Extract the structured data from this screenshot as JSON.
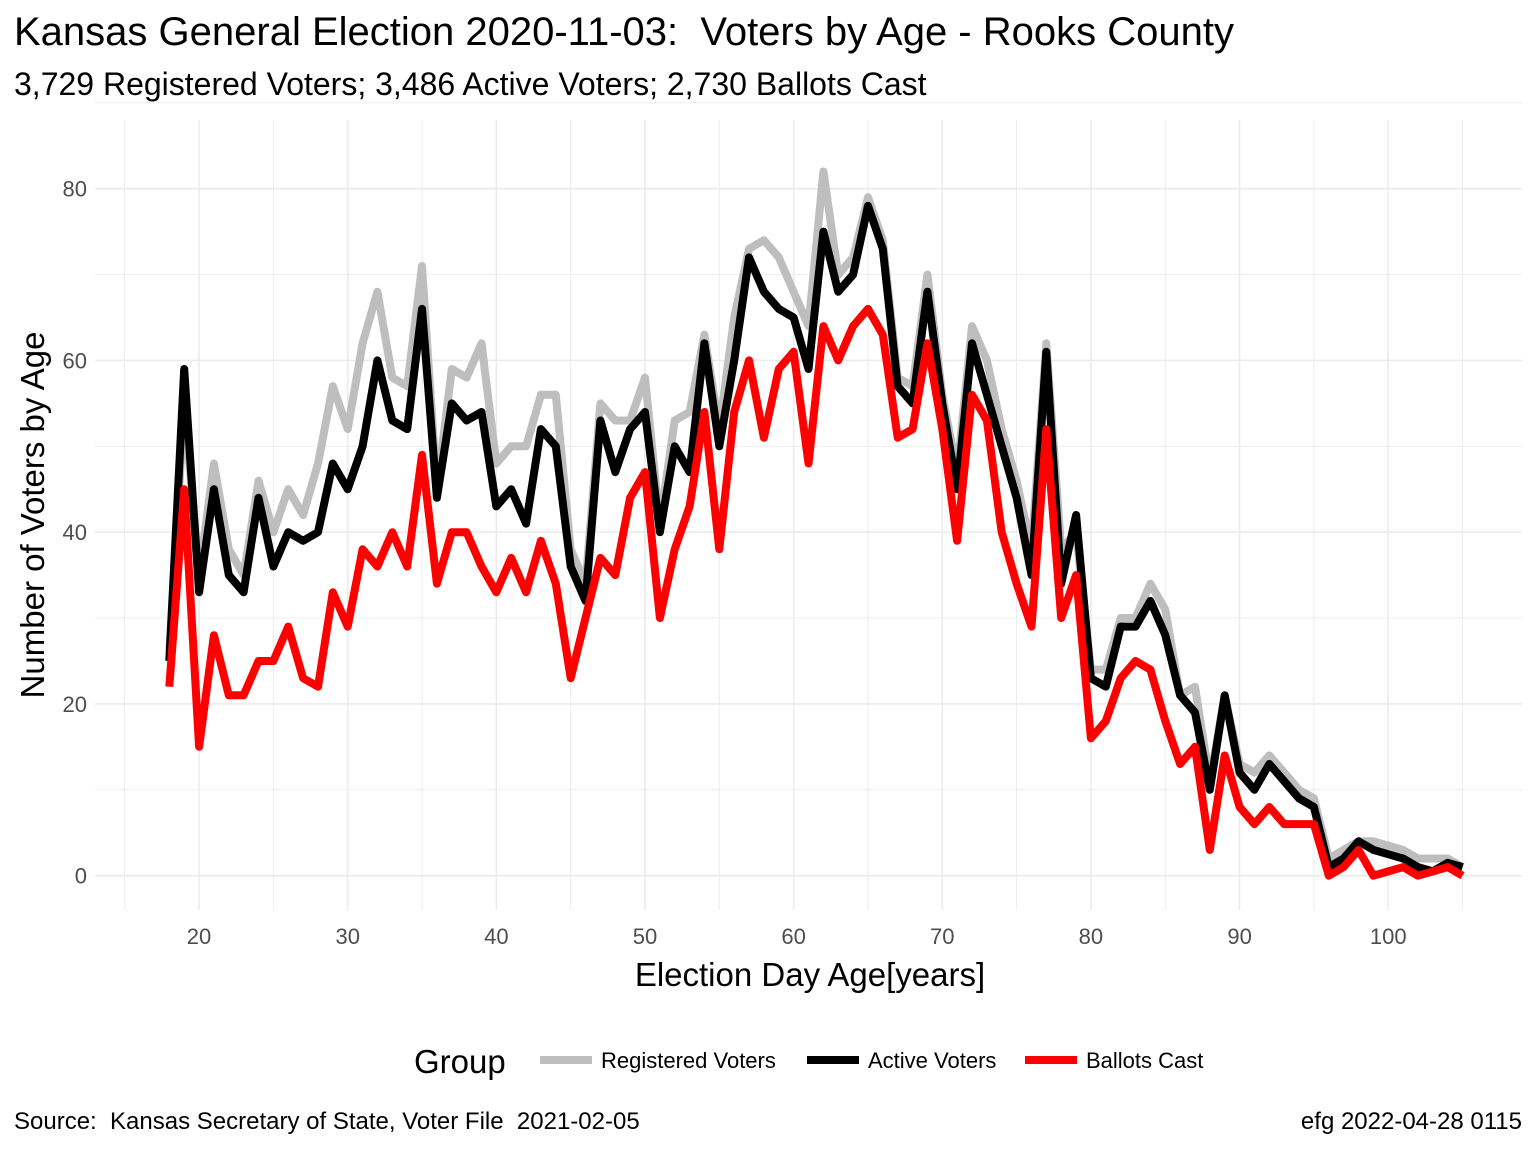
{
  "title": "Kansas General Election 2020-11-03:  Voters by Age - Rooks County",
  "subtitle": "3,729 Registered Voters; 3,486 Active Voters; 2,730 Ballots Cast",
  "caption_left": "Source:  Kansas Secretary of State, Voter File  2021-02-05",
  "caption_right": "efg 2022-04-28 0115",
  "chart_data": {
    "type": "line",
    "title": "Kansas General Election 2020-11-03:  Voters by Age - Rooks County",
    "subtitle": "3,729 Registered Voters; 3,486 Active Voters; 2,730 Ballots Cast",
    "xlabel": "Election Day Age[years]",
    "ylabel": "Number of Voters by Age",
    "xlim": [
      13,
      109
    ],
    "ylim": [
      -4,
      88
    ],
    "x_ticks": [
      20,
      30,
      40,
      50,
      60,
      70,
      80,
      90,
      100
    ],
    "y_ticks": [
      0,
      20,
      40,
      60,
      80
    ],
    "grid": true,
    "legend_title": "Group",
    "legend_position": "bottom",
    "x": [
      18,
      19,
      20,
      21,
      22,
      23,
      24,
      25,
      26,
      27,
      28,
      29,
      30,
      31,
      32,
      33,
      34,
      35,
      36,
      37,
      38,
      39,
      40,
      41,
      42,
      43,
      44,
      45,
      46,
      47,
      48,
      49,
      50,
      51,
      52,
      53,
      54,
      55,
      56,
      57,
      58,
      59,
      60,
      61,
      62,
      63,
      64,
      65,
      66,
      67,
      68,
      69,
      70,
      71,
      72,
      73,
      74,
      75,
      76,
      77,
      78,
      79,
      80,
      81,
      82,
      83,
      84,
      85,
      86,
      87,
      88,
      89,
      90,
      91,
      92,
      93,
      94,
      95,
      96,
      97,
      98,
      99,
      100,
      101,
      102,
      103,
      104,
      105
    ],
    "series": [
      {
        "name": "Registered Voters",
        "color": "#bebebe",
        "values": [
          26,
          55,
          35,
          48,
          38,
          35,
          46,
          40,
          45,
          42,
          48,
          57,
          52,
          62,
          68,
          58,
          57,
          71,
          45,
          59,
          58,
          62,
          48,
          50,
          50,
          56,
          56,
          38,
          34,
          55,
          53,
          53,
          58,
          41,
          53,
          54,
          63,
          52,
          65,
          73,
          74,
          72,
          68,
          64,
          82,
          70,
          72,
          79,
          74,
          58,
          57,
          70,
          56,
          47,
          64,
          60,
          52,
          46,
          38,
          62,
          38,
          40,
          24,
          24,
          30,
          30,
          34,
          31,
          21,
          22,
          11,
          21,
          13,
          12,
          14,
          12,
          10,
          9,
          2,
          3,
          4,
          4,
          3.5,
          3,
          2,
          2,
          2,
          1
        ]
      },
      {
        "name": "Active Voters",
        "color": "#000000",
        "values": [
          25,
          59,
          33,
          45,
          35,
          33,
          44,
          36,
          40,
          39,
          40,
          48,
          45,
          50,
          60,
          53,
          52,
          66,
          44,
          55,
          53,
          54,
          43,
          45,
          41,
          52,
          50,
          36,
          32,
          53,
          47,
          52,
          54,
          40,
          50,
          47,
          62,
          50,
          60,
          72,
          68,
          66,
          65,
          59,
          75,
          68,
          70,
          78,
          73,
          57,
          55,
          68,
          55,
          45,
          62,
          56,
          50,
          44,
          35,
          61,
          34,
          42,
          23,
          22,
          29,
          29,
          32,
          28,
          21,
          19,
          10,
          21,
          12,
          10,
          13,
          11,
          9,
          8,
          1,
          2,
          4,
          3,
          2.5,
          2,
          1,
          0.5,
          1.5,
          1
        ]
      },
      {
        "name": "Ballots Cast",
        "color": "#ff0000",
        "values": [
          22,
          45,
          15,
          28,
          21,
          21,
          25,
          25,
          29,
          23,
          22,
          33,
          29,
          38,
          36,
          40,
          36,
          49,
          34,
          40,
          40,
          36,
          33,
          37,
          33,
          39,
          34,
          23,
          30,
          37,
          35,
          44,
          47,
          30,
          38,
          43,
          54,
          38,
          54,
          60,
          51,
          59,
          61,
          48,
          64,
          60,
          64,
          66,
          63,
          51,
          52,
          62,
          52,
          39,
          56,
          53,
          40,
          34,
          29,
          52,
          30,
          35,
          16,
          18,
          23,
          25,
          24,
          18,
          13,
          15,
          3,
          14,
          8,
          6,
          8,
          6,
          6,
          6,
          0,
          1,
          3,
          0,
          0.5,
          1,
          0,
          0.5,
          1,
          0
        ]
      }
    ]
  }
}
